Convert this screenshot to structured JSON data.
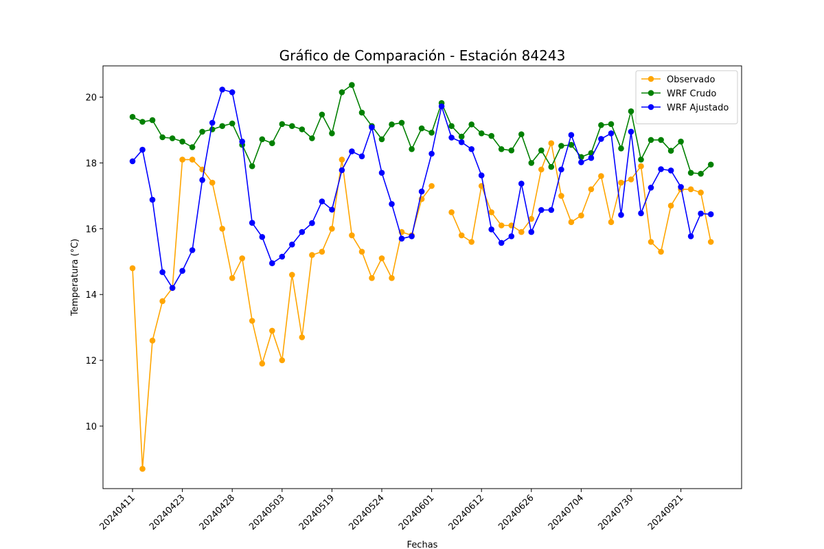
{
  "chart_data": {
    "type": "line",
    "title": "Gráfico de Comparación - Estación 84243",
    "xlabel": "Fechas",
    "ylabel": "Temperatura (°C)",
    "ylim": [
      8.1,
      20.95
    ],
    "yticks": [
      10,
      12,
      14,
      16,
      18,
      20
    ],
    "grid": false,
    "legend_position": "top-right",
    "xtick_labels": [
      {
        "index": 0,
        "label": "20240411"
      },
      {
        "index": 5,
        "label": "20240423"
      },
      {
        "index": 10,
        "label": "20240428"
      },
      {
        "index": 15,
        "label": "20240503"
      },
      {
        "index": 20,
        "label": "20240519"
      },
      {
        "index": 25,
        "label": "20240524"
      },
      {
        "index": 30,
        "label": "20240601"
      },
      {
        "index": 35,
        "label": "20240612"
      },
      {
        "index": 40,
        "label": "20240626"
      },
      {
        "index": 45,
        "label": "20240704"
      },
      {
        "index": 50,
        "label": "20240730"
      },
      {
        "index": 55,
        "label": "20240921"
      }
    ],
    "series": [
      {
        "name": "Observado",
        "color": "#ffa500",
        "values": [
          14.8,
          8.7,
          12.6,
          13.8,
          14.2,
          18.1,
          18.1,
          17.8,
          17.4,
          16.0,
          14.5,
          15.1,
          13.2,
          11.9,
          12.9,
          12.0,
          14.6,
          12.7,
          15.2,
          15.3,
          16.0,
          18.1,
          15.8,
          15.3,
          14.5,
          15.1,
          14.5,
          15.9,
          15.8,
          16.9,
          17.3,
          null,
          16.5,
          15.8,
          15.6,
          17.3,
          16.5,
          16.1,
          16.1,
          15.9,
          16.3,
          17.8,
          18.6,
          17.0,
          16.2,
          16.4,
          17.2,
          17.6,
          16.2,
          17.4,
          17.5,
          17.9,
          15.6,
          15.3,
          16.7,
          17.2,
          17.2,
          17.1,
          15.6
        ]
      },
      {
        "name": "WRF Crudo",
        "color": "#008000",
        "values": [
          19.4,
          19.25,
          19.3,
          18.78,
          18.75,
          18.65,
          18.48,
          18.95,
          19.02,
          19.12,
          19.2,
          18.55,
          17.9,
          18.72,
          18.6,
          19.18,
          19.12,
          19.02,
          18.75,
          19.47,
          18.9,
          20.15,
          20.37,
          19.53,
          19.12,
          18.72,
          19.17,
          19.22,
          18.42,
          19.05,
          18.92,
          19.82,
          19.12,
          18.8,
          19.17,
          18.9,
          18.82,
          18.42,
          18.38,
          18.87,
          18.0,
          18.38,
          17.88,
          18.52,
          18.55,
          18.18,
          18.3,
          19.15,
          19.18,
          18.44,
          19.57,
          18.1,
          18.7,
          18.7,
          18.37,
          18.65,
          17.7,
          17.67,
          17.95
        ]
      },
      {
        "name": "WRF Ajustado",
        "color": "#0000ff",
        "values": [
          18.05,
          18.4,
          16.88,
          14.68,
          14.2,
          14.72,
          15.35,
          17.48,
          19.22,
          20.23,
          20.15,
          18.65,
          16.18,
          15.75,
          14.95,
          15.15,
          15.52,
          15.9,
          16.17,
          16.83,
          16.58,
          17.78,
          18.35,
          18.2,
          19.08,
          17.7,
          16.75,
          15.7,
          15.77,
          17.13,
          18.28,
          19.72,
          18.77,
          18.63,
          18.42,
          17.62,
          15.98,
          15.57,
          15.77,
          17.37,
          15.9,
          16.57,
          16.57,
          17.8,
          18.85,
          18.02,
          18.15,
          18.73,
          18.9,
          16.42,
          18.95,
          16.47,
          17.25,
          17.81,
          17.77,
          17.27,
          15.77,
          16.46,
          16.44
        ]
      }
    ]
  }
}
